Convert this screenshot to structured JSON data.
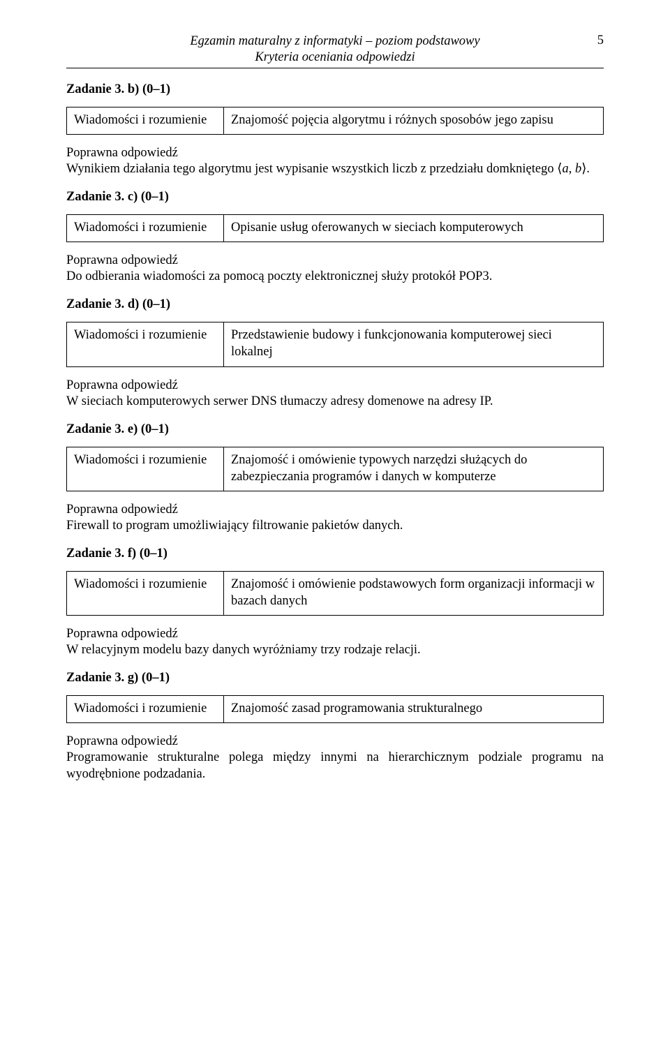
{
  "header": {
    "title1": "Egzamin maturalny z informatyki – poziom podstawowy",
    "title2": "Kryteria oceniania odpowiedzi",
    "page_number": "5"
  },
  "common": {
    "wir": "Wiadomości i rozumienie",
    "pop": "Poprawna odpowiedź"
  },
  "sections": [
    {
      "title": "Zadanie 3. b) (0–1)",
      "criterion": "Znajomość pojęcia algorytmu i różnych sposobów jego zapisu",
      "answer": "Wynikiem działania tego algorytmu jest wypisanie wszystkich liczb z przedziału domkniętego ⟨a, b⟩."
    },
    {
      "title": "Zadanie 3. c) (0–1)",
      "criterion": "Opisanie usług oferowanych w sieciach komputerowych",
      "answer": "Do odbierania wiadomości za pomocą poczty elektronicznej służy protokół POP3."
    },
    {
      "title": "Zadanie 3. d) (0–1)",
      "criterion": "Przedstawienie budowy i funkcjonowania komputerowej sieci lokalnej",
      "answer": "W sieciach komputerowych serwer DNS tłumaczy adresy domenowe na adresy IP."
    },
    {
      "title": "Zadanie 3. e) (0–1)",
      "criterion": "Znajomość i omówienie typowych narzędzi służących do zabezpieczania programów i danych w komputerze",
      "answer": "Firewall to program umożliwiający filtrowanie pakietów danych."
    },
    {
      "title": "Zadanie 3. f) (0–1)",
      "criterion": "Znajomość i omówienie podstawowych form organizacji informacji w bazach danych",
      "answer": "W relacyjnym modelu bazy danych wyróżniamy trzy rodzaje relacji."
    },
    {
      "title": "Zadanie 3. g) (0–1)",
      "criterion": "Znajomość zasad programowania strukturalnego",
      "answer": "Programowanie strukturalne polega między innymi na hierarchicznym podziale programu na wyodrębnione podzadania."
    }
  ]
}
